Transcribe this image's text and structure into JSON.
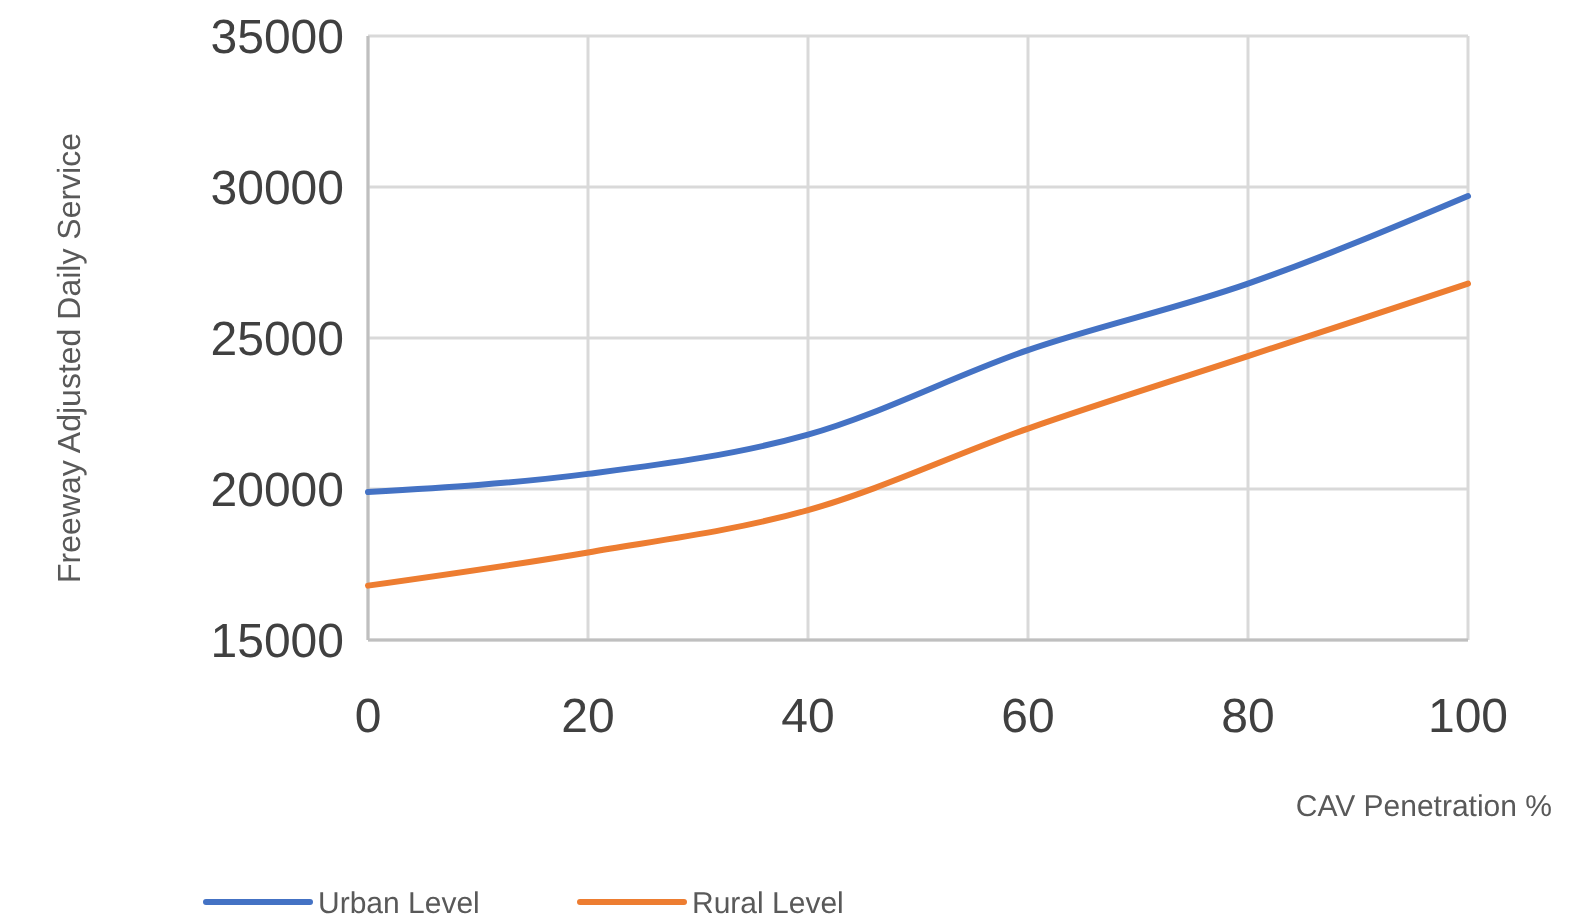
{
  "chart_data": {
    "type": "line",
    "xlabel": "CAV Penetration %",
    "ylabel": "Freeway Adjusted Daily Service",
    "x": [
      0,
      20,
      40,
      60,
      80,
      100
    ],
    "series": [
      {
        "name": "Urban Level",
        "color": "#4472c4",
        "values": [
          19900,
          20500,
          21800,
          24600,
          26800,
          29700
        ]
      },
      {
        "name": "Rural Level",
        "color": "#ed7d31",
        "values": [
          16800,
          17900,
          19300,
          22000,
          24400,
          26800
        ]
      }
    ],
    "xlim": [
      0,
      100
    ],
    "xticks": [
      0,
      20,
      40,
      60,
      80,
      100
    ],
    "ylim": [
      15000,
      35000
    ],
    "yticks": [
      15000,
      20000,
      25000,
      30000,
      35000
    ],
    "grid": true,
    "legend": "bottom",
    "marker": "none",
    "line_style": "solid"
  }
}
